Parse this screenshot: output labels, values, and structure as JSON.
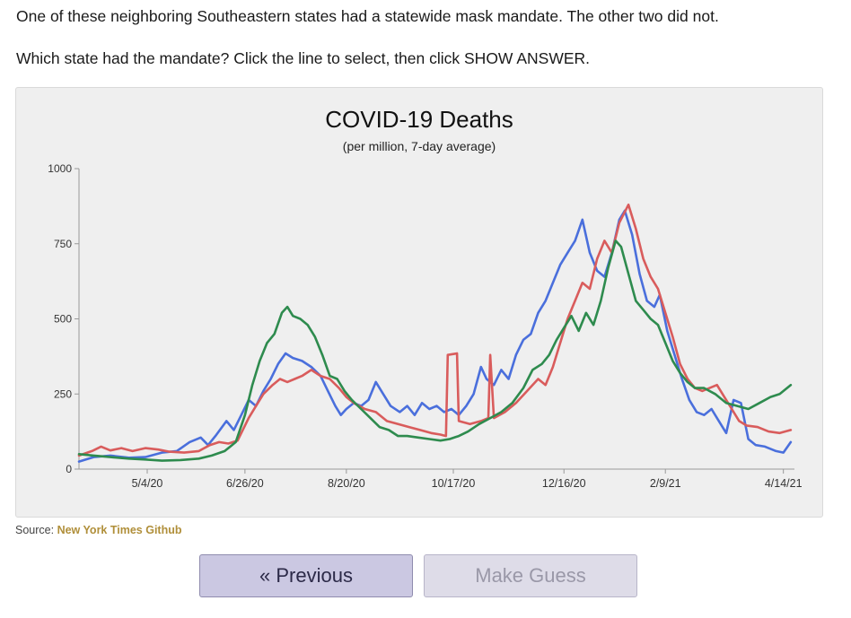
{
  "prompt": {
    "line1": "One of these neighboring Southeastern states had a statewide mask mandate. The other two did not.",
    "line2": "Which state had the mandate? Click the line to select, then click SHOW ANSWER."
  },
  "source": {
    "label": "Source:",
    "link": "New York Times Github"
  },
  "buttons": {
    "previous": "« Previous",
    "guess": "Make Guess"
  },
  "chart_data": {
    "type": "line",
    "title": "COVID-19 Deaths",
    "subtitle": "(per million, 7-day average)",
    "xlabel": "",
    "ylabel": "",
    "ylim": [
      0,
      1000
    ],
    "yticks": [
      0,
      250,
      500,
      750,
      1000
    ],
    "x_range": [
      "2020-03-28",
      "2021-04-20"
    ],
    "xticks": [
      {
        "date": "2020-05-04",
        "label": "5/4/20"
      },
      {
        "date": "2020-06-26",
        "label": "6/26/20"
      },
      {
        "date": "2020-08-20",
        "label": "8/20/20"
      },
      {
        "date": "2020-10-17",
        "label": "10/17/20"
      },
      {
        "date": "2020-12-16",
        "label": "12/16/20"
      },
      {
        "date": "2021-02-09",
        "label": "2/9/21"
      },
      {
        "date": "2021-04-14",
        "label": "4/14/21"
      }
    ],
    "grid": false,
    "legend": "none",
    "series": [
      {
        "color": "#4a6fdc",
        "points": [
          [
            "2020-03-28",
            25
          ],
          [
            "2020-04-05",
            40
          ],
          [
            "2020-04-14",
            45
          ],
          [
            "2020-04-24",
            38
          ],
          [
            "2020-05-03",
            40
          ],
          [
            "2020-05-12",
            55
          ],
          [
            "2020-05-20",
            60
          ],
          [
            "2020-05-27",
            90
          ],
          [
            "2020-06-02",
            105
          ],
          [
            "2020-06-06",
            80
          ],
          [
            "2020-06-10",
            110
          ],
          [
            "2020-06-16",
            160
          ],
          [
            "2020-06-20",
            130
          ],
          [
            "2020-06-24",
            180
          ],
          [
            "2020-06-28",
            230
          ],
          [
            "2020-07-02",
            210
          ],
          [
            "2020-07-06",
            260
          ],
          [
            "2020-07-10",
            300
          ],
          [
            "2020-07-14",
            350
          ],
          [
            "2020-07-18",
            385
          ],
          [
            "2020-07-22",
            370
          ],
          [
            "2020-07-27",
            360
          ],
          [
            "2020-08-01",
            340
          ],
          [
            "2020-08-06",
            310
          ],
          [
            "2020-08-10",
            260
          ],
          [
            "2020-08-14",
            210
          ],
          [
            "2020-08-17",
            180
          ],
          [
            "2020-08-20",
            200
          ],
          [
            "2020-08-24",
            220
          ],
          [
            "2020-08-28",
            210
          ],
          [
            "2020-09-01",
            230
          ],
          [
            "2020-09-05",
            290
          ],
          [
            "2020-09-09",
            250
          ],
          [
            "2020-09-13",
            210
          ],
          [
            "2020-09-18",
            190
          ],
          [
            "2020-09-22",
            210
          ],
          [
            "2020-09-26",
            180
          ],
          [
            "2020-09-30",
            220
          ],
          [
            "2020-10-04",
            200
          ],
          [
            "2020-10-08",
            210
          ],
          [
            "2020-10-12",
            190
          ],
          [
            "2020-10-16",
            200
          ],
          [
            "2020-10-20",
            180
          ],
          [
            "2020-10-24",
            210
          ],
          [
            "2020-10-28",
            250
          ],
          [
            "2020-11-01",
            340
          ],
          [
            "2020-11-04",
            300
          ],
          [
            "2020-11-08",
            280
          ],
          [
            "2020-11-12",
            330
          ],
          [
            "2020-11-16",
            300
          ],
          [
            "2020-11-20",
            380
          ],
          [
            "2020-11-24",
            430
          ],
          [
            "2020-11-28",
            450
          ],
          [
            "2020-12-02",
            520
          ],
          [
            "2020-12-06",
            560
          ],
          [
            "2020-12-10",
            620
          ],
          [
            "2020-12-14",
            680
          ],
          [
            "2020-12-18",
            720
          ],
          [
            "2020-12-22",
            760
          ],
          [
            "2020-12-26",
            830
          ],
          [
            "2020-12-30",
            720
          ],
          [
            "2021-01-03",
            660
          ],
          [
            "2021-01-07",
            640
          ],
          [
            "2021-01-11",
            720
          ],
          [
            "2021-01-15",
            830
          ],
          [
            "2021-01-18",
            860
          ],
          [
            "2021-01-22",
            780
          ],
          [
            "2021-01-26",
            650
          ],
          [
            "2021-01-30",
            560
          ],
          [
            "2021-02-03",
            540
          ],
          [
            "2021-02-06",
            580
          ],
          [
            "2021-02-10",
            460
          ],
          [
            "2021-02-14",
            380
          ],
          [
            "2021-02-18",
            300
          ],
          [
            "2021-02-22",
            230
          ],
          [
            "2021-02-26",
            190
          ],
          [
            "2021-03-02",
            180
          ],
          [
            "2021-03-06",
            200
          ],
          [
            "2021-03-10",
            160
          ],
          [
            "2021-03-14",
            120
          ],
          [
            "2021-03-18",
            230
          ],
          [
            "2021-03-22",
            220
          ],
          [
            "2021-03-26",
            100
          ],
          [
            "2021-03-30",
            80
          ],
          [
            "2021-04-04",
            75
          ],
          [
            "2021-04-10",
            60
          ],
          [
            "2021-04-14",
            55
          ],
          [
            "2021-04-18",
            90
          ]
        ]
      },
      {
        "color": "#d95c5c",
        "points": [
          [
            "2020-03-28",
            45
          ],
          [
            "2020-04-04",
            60
          ],
          [
            "2020-04-09",
            75
          ],
          [
            "2020-04-14",
            62
          ],
          [
            "2020-04-20",
            70
          ],
          [
            "2020-04-26",
            60
          ],
          [
            "2020-05-03",
            70
          ],
          [
            "2020-05-10",
            65
          ],
          [
            "2020-05-16",
            58
          ],
          [
            "2020-05-24",
            55
          ],
          [
            "2020-06-01",
            60
          ],
          [
            "2020-06-07",
            80
          ],
          [
            "2020-06-12",
            90
          ],
          [
            "2020-06-17",
            85
          ],
          [
            "2020-06-22",
            95
          ],
          [
            "2020-06-28",
            170
          ],
          [
            "2020-07-02",
            210
          ],
          [
            "2020-07-06",
            250
          ],
          [
            "2020-07-11",
            280
          ],
          [
            "2020-07-15",
            300
          ],
          [
            "2020-07-19",
            290
          ],
          [
            "2020-07-23",
            300
          ],
          [
            "2020-07-27",
            310
          ],
          [
            "2020-08-01",
            330
          ],
          [
            "2020-08-06",
            310
          ],
          [
            "2020-08-11",
            300
          ],
          [
            "2020-08-16",
            270
          ],
          [
            "2020-08-20",
            240
          ],
          [
            "2020-08-24",
            220
          ],
          [
            "2020-08-30",
            200
          ],
          [
            "2020-09-05",
            190
          ],
          [
            "2020-09-11",
            160
          ],
          [
            "2020-09-17",
            150
          ],
          [
            "2020-09-23",
            140
          ],
          [
            "2020-09-29",
            130
          ],
          [
            "2020-10-05",
            120
          ],
          [
            "2020-10-10",
            115
          ],
          [
            "2020-10-13",
            110
          ],
          [
            "2020-10-14",
            380
          ],
          [
            "2020-10-19",
            385
          ],
          [
            "2020-10-20",
            160
          ],
          [
            "2020-10-26",
            150
          ],
          [
            "2020-11-01",
            160
          ],
          [
            "2020-11-05",
            170
          ],
          [
            "2020-11-06",
            380
          ],
          [
            "2020-11-08",
            170
          ],
          [
            "2020-11-14",
            190
          ],
          [
            "2020-11-20",
            220
          ],
          [
            "2020-11-26",
            260
          ],
          [
            "2020-12-02",
            300
          ],
          [
            "2020-12-06",
            280
          ],
          [
            "2020-12-10",
            340
          ],
          [
            "2020-12-14",
            420
          ],
          [
            "2020-12-18",
            500
          ],
          [
            "2020-12-22",
            560
          ],
          [
            "2020-12-26",
            620
          ],
          [
            "2020-12-30",
            600
          ],
          [
            "2021-01-03",
            700
          ],
          [
            "2021-01-07",
            760
          ],
          [
            "2021-01-11",
            720
          ],
          [
            "2021-01-15",
            820
          ],
          [
            "2021-01-20",
            880
          ],
          [
            "2021-01-24",
            800
          ],
          [
            "2021-01-28",
            700
          ],
          [
            "2021-02-01",
            640
          ],
          [
            "2021-02-05",
            600
          ],
          [
            "2021-02-09",
            520
          ],
          [
            "2021-02-13",
            440
          ],
          [
            "2021-02-17",
            350
          ],
          [
            "2021-02-21",
            300
          ],
          [
            "2021-02-25",
            270
          ],
          [
            "2021-03-01",
            260
          ],
          [
            "2021-03-05",
            270
          ],
          [
            "2021-03-09",
            280
          ],
          [
            "2021-03-13",
            240
          ],
          [
            "2021-03-17",
            200
          ],
          [
            "2021-03-21",
            160
          ],
          [
            "2021-03-25",
            145
          ],
          [
            "2021-03-31",
            140
          ],
          [
            "2021-04-06",
            125
          ],
          [
            "2021-04-12",
            120
          ],
          [
            "2021-04-18",
            130
          ]
        ]
      },
      {
        "color": "#2e8b4e",
        "points": [
          [
            "2020-03-28",
            50
          ],
          [
            "2020-04-05",
            45
          ],
          [
            "2020-04-14",
            40
          ],
          [
            "2020-04-24",
            35
          ],
          [
            "2020-05-03",
            32
          ],
          [
            "2020-05-12",
            28
          ],
          [
            "2020-05-22",
            30
          ],
          [
            "2020-06-01",
            35
          ],
          [
            "2020-06-08",
            45
          ],
          [
            "2020-06-15",
            60
          ],
          [
            "2020-06-21",
            90
          ],
          [
            "2020-06-26",
            180
          ],
          [
            "2020-06-30",
            280
          ],
          [
            "2020-07-04",
            360
          ],
          [
            "2020-07-08",
            420
          ],
          [
            "2020-07-12",
            450
          ],
          [
            "2020-07-16",
            520
          ],
          [
            "2020-07-19",
            540
          ],
          [
            "2020-07-22",
            510
          ],
          [
            "2020-07-26",
            500
          ],
          [
            "2020-07-30",
            480
          ],
          [
            "2020-08-03",
            440
          ],
          [
            "2020-08-07",
            380
          ],
          [
            "2020-08-11",
            310
          ],
          [
            "2020-08-15",
            300
          ],
          [
            "2020-08-19",
            260
          ],
          [
            "2020-08-23",
            230
          ],
          [
            "2020-08-28",
            200
          ],
          [
            "2020-09-02",
            170
          ],
          [
            "2020-09-07",
            140
          ],
          [
            "2020-09-12",
            130
          ],
          [
            "2020-09-17",
            110
          ],
          [
            "2020-09-22",
            110
          ],
          [
            "2020-09-28",
            105
          ],
          [
            "2020-10-04",
            100
          ],
          [
            "2020-10-10",
            95
          ],
          [
            "2020-10-15",
            100
          ],
          [
            "2020-10-20",
            110
          ],
          [
            "2020-10-25",
            125
          ],
          [
            "2020-10-31",
            150
          ],
          [
            "2020-11-06",
            170
          ],
          [
            "2020-11-12",
            190
          ],
          [
            "2020-11-18",
            220
          ],
          [
            "2020-11-24",
            270
          ],
          [
            "2020-11-29",
            330
          ],
          [
            "2020-12-04",
            350
          ],
          [
            "2020-12-08",
            380
          ],
          [
            "2020-12-12",
            430
          ],
          [
            "2020-12-16",
            470
          ],
          [
            "2020-12-20",
            510
          ],
          [
            "2020-12-24",
            460
          ],
          [
            "2020-12-28",
            520
          ],
          [
            "2021-01-01",
            480
          ],
          [
            "2021-01-05",
            560
          ],
          [
            "2021-01-09",
            670
          ],
          [
            "2021-01-13",
            760
          ],
          [
            "2021-01-16",
            740
          ],
          [
            "2021-01-20",
            650
          ],
          [
            "2021-01-24",
            560
          ],
          [
            "2021-01-28",
            530
          ],
          [
            "2021-02-01",
            500
          ],
          [
            "2021-02-05",
            480
          ],
          [
            "2021-02-09",
            420
          ],
          [
            "2021-02-13",
            360
          ],
          [
            "2021-02-17",
            320
          ],
          [
            "2021-02-21",
            290
          ],
          [
            "2021-02-25",
            270
          ],
          [
            "2021-03-02",
            270
          ],
          [
            "2021-03-08",
            250
          ],
          [
            "2021-03-14",
            220
          ],
          [
            "2021-03-20",
            210
          ],
          [
            "2021-03-26",
            200
          ],
          [
            "2021-04-01",
            220
          ],
          [
            "2021-04-07",
            240
          ],
          [
            "2021-04-12",
            250
          ],
          [
            "2021-04-18",
            280
          ]
        ]
      }
    ]
  }
}
